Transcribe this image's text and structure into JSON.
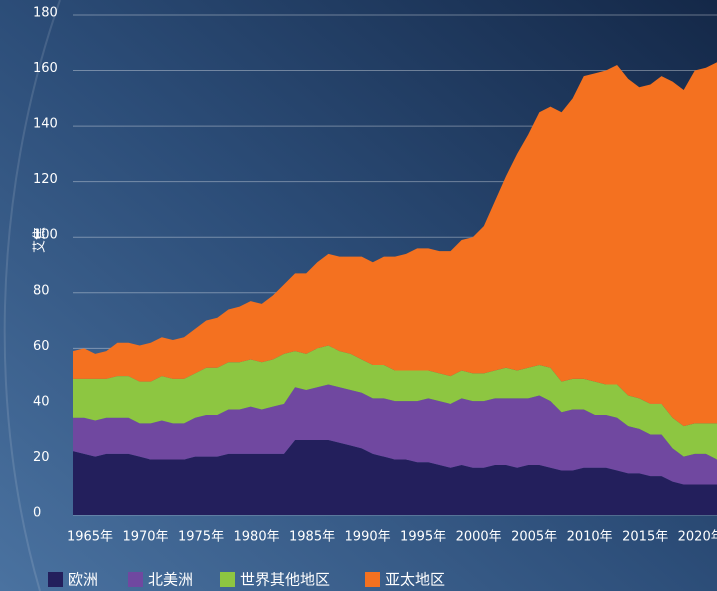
{
  "chart_data": {
    "type": "stacked_area",
    "y_label": "艾焦",
    "x": [
      1965,
      1966,
      1967,
      1968,
      1969,
      1970,
      1971,
      1972,
      1973,
      1974,
      1975,
      1976,
      1977,
      1978,
      1979,
      1980,
      1981,
      1982,
      1983,
      1984,
      1985,
      1986,
      1987,
      1988,
      1989,
      1990,
      1991,
      1992,
      1993,
      1994,
      1995,
      1996,
      1997,
      1998,
      1999,
      2000,
      2001,
      2002,
      2003,
      2004,
      2005,
      2006,
      2007,
      2008,
      2009,
      2010,
      2011,
      2012,
      2013,
      2014,
      2015,
      2016,
      2017,
      2018,
      2019,
      2020,
      2021,
      2022,
      2023
    ],
    "series": [
      {
        "name": "欧洲",
        "color": "#231f5c",
        "values": [
          23,
          22,
          21,
          22,
          22,
          22,
          21,
          20,
          20,
          20,
          20,
          21,
          21,
          21,
          22,
          22,
          22,
          22,
          22,
          22,
          27,
          27,
          27,
          27,
          26,
          25,
          24,
          22,
          21,
          20,
          20,
          19,
          19,
          18,
          17,
          18,
          17,
          17,
          18,
          18,
          17,
          18,
          18,
          17,
          16,
          16,
          17,
          17,
          17,
          16,
          15,
          15,
          14,
          14,
          12,
          11,
          11,
          11,
          11
        ]
      },
      {
        "name": "北美洲",
        "color": "#7048a0",
        "values": [
          12,
          13,
          13,
          13,
          13,
          13,
          12,
          13,
          14,
          13,
          13,
          14,
          15,
          15,
          16,
          16,
          17,
          16,
          17,
          18,
          19,
          18,
          19,
          20,
          20,
          20,
          20,
          20,
          21,
          21,
          21,
          22,
          23,
          23,
          23,
          24,
          24,
          24,
          24,
          24,
          25,
          24,
          25,
          24,
          21,
          22,
          21,
          19,
          19,
          19,
          17,
          16,
          15,
          15,
          12,
          10,
          11,
          11,
          9
        ]
      },
      {
        "name": "世界其他地区",
        "color": "#8dc641",
        "values": [
          14,
          14,
          15,
          14,
          15,
          15,
          15,
          15,
          16,
          16,
          16,
          16,
          17,
          17,
          17,
          17,
          17,
          17,
          17,
          18,
          13,
          13,
          14,
          14,
          13,
          13,
          12,
          12,
          12,
          11,
          11,
          11,
          10,
          10,
          10,
          10,
          10,
          10,
          10,
          11,
          10,
          11,
          11,
          12,
          11,
          11,
          11,
          12,
          11,
          12,
          11,
          11,
          11,
          11,
          11,
          11,
          11,
          11,
          13
        ]
      },
      {
        "name": "亚太地区",
        "color": "#f47120",
        "values": [
          10,
          11,
          9,
          10,
          12,
          12,
          13,
          14,
          14,
          14,
          15,
          16,
          17,
          18,
          19,
          20,
          21,
          21,
          23,
          25,
          28,
          29,
          31,
          33,
          34,
          35,
          37,
          37,
          39,
          41,
          42,
          44,
          44,
          44,
          45,
          47,
          49,
          53,
          61,
          69,
          78,
          84,
          91,
          94,
          97,
          101,
          109,
          111,
          113,
          115,
          114,
          112,
          115,
          118,
          121,
          121,
          127,
          128,
          130
        ]
      }
    ],
    "xlim": [
      1965,
      2023
    ],
    "xticks": [
      {
        "value": 1965,
        "label": "1965年"
      },
      {
        "value": 1970,
        "label": "1970年"
      },
      {
        "value": 1975,
        "label": "1975年"
      },
      {
        "value": 1980,
        "label": "1980年"
      },
      {
        "value": 1985,
        "label": "1985年"
      },
      {
        "value": 1990,
        "label": "1990年"
      },
      {
        "value": 1995,
        "label": "1995年"
      },
      {
        "value": 2000,
        "label": "2000年"
      },
      {
        "value": 2005,
        "label": "2005年"
      },
      {
        "value": 2010,
        "label": "2010年"
      },
      {
        "value": 2015,
        "label": "2015年"
      },
      {
        "value": 2020,
        "label": "2020年"
      }
    ],
    "ylim": [
      0,
      180
    ],
    "yticks": [
      0,
      20,
      40,
      60,
      80,
      100,
      120,
      140,
      160,
      180
    ],
    "grid": true
  }
}
